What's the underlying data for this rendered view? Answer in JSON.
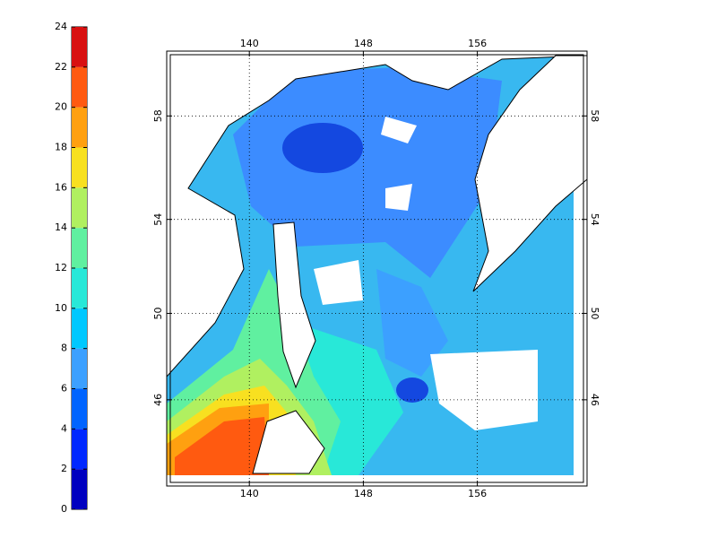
{
  "colorbar": {
    "ticks": [
      0,
      2,
      4,
      6,
      8,
      10,
      12,
      14,
      16,
      18,
      20,
      22,
      24
    ],
    "colors": [
      "#0000c0",
      "#0028ff",
      "#0064ff",
      "#3ca0ff",
      "#00c8ff",
      "#28e8d8",
      "#60f0a0",
      "#b0f060",
      "#f8e020",
      "#ffa010",
      "#ff5a10",
      "#d81010"
    ]
  },
  "map": {
    "lon_range": [
      134.2,
      163.7
    ],
    "lat_range": [
      41.7,
      60.3
    ],
    "lon_ticks": [
      140,
      148,
      156
    ],
    "lat_ticks": [
      46,
      50,
      54,
      58
    ],
    "grid": true
  }
}
